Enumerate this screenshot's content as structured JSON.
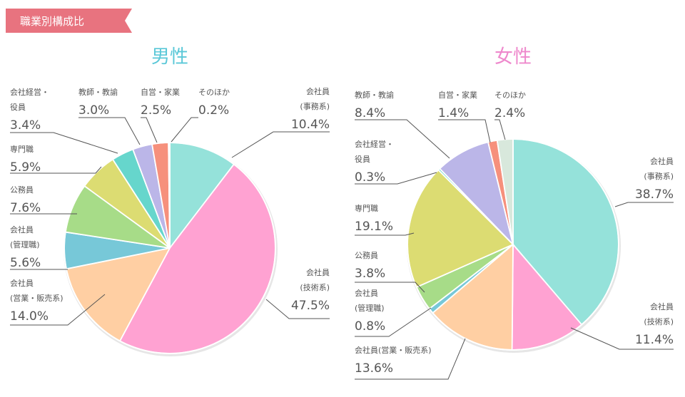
{
  "header": {
    "badge": "職業別構成比",
    "badge_color": "#e8737f"
  },
  "chart_data": [
    {
      "type": "pie",
      "title": "男性",
      "title_color": "#5bc8d8",
      "slices": [
        {
          "label": [
            "会社員",
            "(事務系)"
          ],
          "value": 10.4,
          "value_text": "10.4%",
          "color": "#95e2da"
        },
        {
          "label": [
            "会社員",
            "(技術系)"
          ],
          "value": 47.5,
          "value_text": "47.5%",
          "color": "#ffa2d2"
        },
        {
          "label": [
            "会社員",
            "(営業・販売系)"
          ],
          "value": 14.0,
          "value_text": "14.0%",
          "color": "#ffcfa3"
        },
        {
          "label": [
            "会社員",
            "(管理職)"
          ],
          "value": 5.6,
          "value_text": "5.6%",
          "color": "#77c8d8"
        },
        {
          "label": [
            "公務員"
          ],
          "value": 7.6,
          "value_text": "7.6%",
          "color": "#a7dc88"
        },
        {
          "label": [
            "専門職"
          ],
          "value": 5.9,
          "value_text": "5.9%",
          "color": "#dcdc72"
        },
        {
          "label": [
            "会社経営・",
            "役員"
          ],
          "value": 3.4,
          "value_text": "3.4%",
          "color": "#66d6cc"
        },
        {
          "label": [
            "教師・教諭"
          ],
          "value": 3.0,
          "value_text": "3.0%",
          "color": "#bbb6e8"
        },
        {
          "label": [
            "自営・家業"
          ],
          "value": 2.5,
          "value_text": "2.5%",
          "color": "#f6907c"
        },
        {
          "label": [
            "そのほか"
          ],
          "value": 0.2,
          "value_text": "0.2%",
          "color": "#d8e8dc"
        }
      ]
    },
    {
      "type": "pie",
      "title": "女性",
      "title_color": "#ee88cc",
      "slices": [
        {
          "label": [
            "会社員",
            "(事務系)"
          ],
          "value": 38.7,
          "value_text": "38.7%",
          "color": "#95e2da"
        },
        {
          "label": [
            "会社員",
            "(技術系)"
          ],
          "value": 11.4,
          "value_text": "11.4%",
          "color": "#ffa2d2"
        },
        {
          "label": [
            "会社員(営業・販売系)"
          ],
          "value": 13.6,
          "value_text": "13.6%",
          "color": "#ffcfa3"
        },
        {
          "label": [
            "会社員",
            "(管理職)"
          ],
          "value": 0.8,
          "value_text": "0.8%",
          "color": "#77c8d8"
        },
        {
          "label": [
            "公務員"
          ],
          "value": 3.8,
          "value_text": "3.8%",
          "color": "#a7dc88"
        },
        {
          "label": [
            "専門職"
          ],
          "value": 19.1,
          "value_text": "19.1%",
          "color": "#dcdc72"
        },
        {
          "label": [
            "会社経営・",
            "役員"
          ],
          "value": 0.3,
          "value_text": "0.3%",
          "color": "#66d6cc"
        },
        {
          "label": [
            "教師・教諭"
          ],
          "value": 8.4,
          "value_text": "8.4%",
          "color": "#bbb6e8"
        },
        {
          "label": [
            "自営・家業"
          ],
          "value": 1.4,
          "value_text": "1.4%",
          "color": "#f6907c"
        },
        {
          "label": [
            "そのほか"
          ],
          "value": 2.4,
          "value_text": "2.4%",
          "color": "#d8e8dc"
        }
      ]
    }
  ]
}
